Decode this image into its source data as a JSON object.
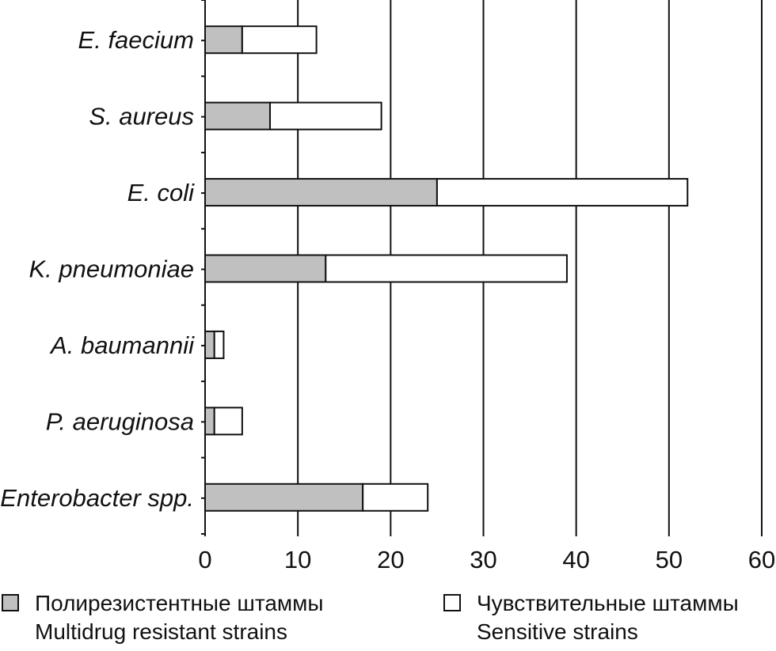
{
  "chart_data": {
    "type": "bar",
    "orientation": "horizontal",
    "stacked": true,
    "categories": [
      "E. faecium",
      "S. aureus",
      "E. coli",
      "K. pneumoniae",
      "A. baumannii",
      "P. aeruginosa",
      "Enterobacter spp."
    ],
    "series": [
      {
        "name": "Полирезистентные штаммы / Multidrug resistant strains",
        "values": [
          4,
          7,
          25,
          13,
          1,
          1,
          17
        ],
        "color": "#c0c0c0"
      },
      {
        "name": "Чувствительные штаммы / Sensitive strains",
        "values": [
          8,
          12,
          27,
          26,
          1,
          3,
          7
        ],
        "color": "#ffffff"
      }
    ],
    "xlim": [
      0,
      60
    ],
    "xticks": [
      "0",
      "10",
      "20",
      "30",
      "40",
      "50",
      "60"
    ],
    "grid": "vertical",
    "legend_position": "bottom"
  },
  "legend": {
    "resistant_ru": "Полирезистентные штаммы",
    "resistant_en": "Multidrug resistant strains",
    "sensitive_ru": "Чувствительные штаммы",
    "sensitive_en": "Sensitive strains"
  }
}
